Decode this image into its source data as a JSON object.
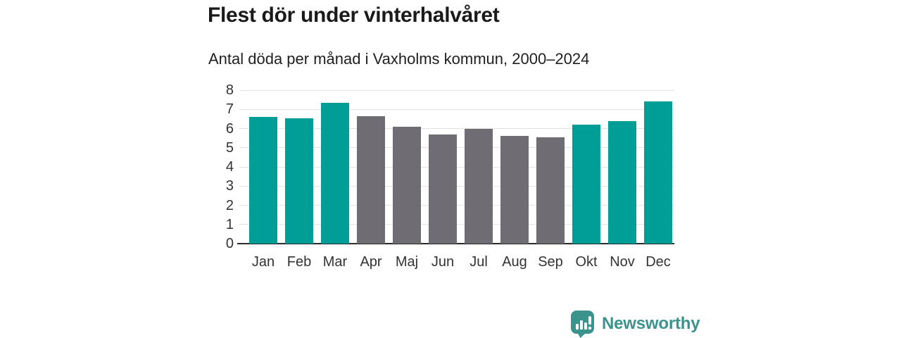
{
  "header": {
    "title": "Flest dör under vinterhalvåret",
    "subtitle": "Antal döda per månad i Vaxholms kommun, 2000–2024"
  },
  "chart_data": {
    "type": "bar",
    "title": "Flest dör under vinterhalvåret",
    "subtitle": "Antal döda per månad i Vaxholms kommun, 2000–2024",
    "categories": [
      "Jan",
      "Feb",
      "Mar",
      "Apr",
      "Maj",
      "Jun",
      "Jul",
      "Aug",
      "Sep",
      "Okt",
      "Nov",
      "Dec"
    ],
    "values": [
      6.6,
      6.55,
      7.35,
      6.65,
      6.1,
      5.7,
      6.0,
      5.6,
      5.55,
      6.2,
      6.4,
      7.4
    ],
    "bar_colors": [
      "#009e96",
      "#009e96",
      "#009e96",
      "#6f6c73",
      "#6f6c73",
      "#6f6c73",
      "#6f6c73",
      "#6f6c73",
      "#6f6c73",
      "#009e96",
      "#009e96",
      "#009e96"
    ],
    "palette": {
      "winter_halfyear": "#009e96",
      "summer_halfyear": "#6f6c73",
      "gridline": "#e3e3e3",
      "axis_line": "#2b2b2b",
      "tick_text": "#333333"
    },
    "xlabel": "",
    "ylabel": "",
    "ylim": [
      0,
      8
    ],
    "yticks": [
      0,
      1,
      2,
      3,
      4,
      5,
      6,
      7,
      8
    ],
    "grid": true,
    "legend": "none"
  },
  "footer": {
    "brand": "Newsworthy",
    "brand_color": "#3a938d",
    "logo_icon": "bar-chart-speech-bubble-icon"
  }
}
